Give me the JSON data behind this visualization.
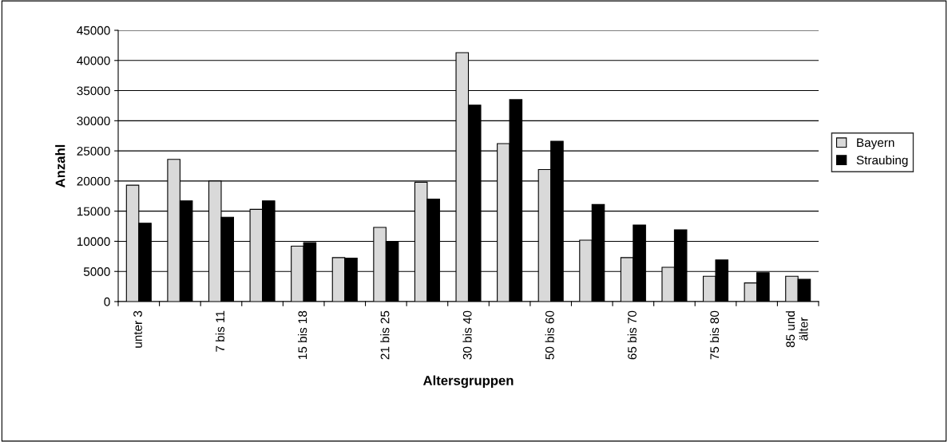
{
  "chart_data": {
    "type": "bar",
    "xlabel": "Altersgruppen",
    "ylabel": "Anzahl",
    "categories": [
      "unter 3",
      null,
      "7 bis 11",
      null,
      "15 bis 18",
      null,
      "21 bis 25",
      null,
      "30 bis 40",
      null,
      "50 bis 60",
      null,
      "65 bis 70",
      null,
      "75 bis 80",
      null,
      "85 und\nälter"
    ],
    "series": [
      {
        "name": "Bayern",
        "color": "#d9d9d9",
        "values": [
          19300,
          23600,
          20000,
          15300,
          9200,
          7300,
          12300,
          19800,
          41300,
          26200,
          21900,
          10200,
          7300,
          5700,
          4200,
          3100,
          4200
        ]
      },
      {
        "name": "Straubing",
        "color": "#000000",
        "values": [
          13000,
          16700,
          14000,
          16700,
          9800,
          7200,
          10000,
          17000,
          32600,
          33500,
          26600,
          16100,
          12700,
          11900,
          6900,
          4800,
          3700
        ]
      }
    ],
    "ylim": [
      0,
      45000
    ],
    "yticks": [
      0,
      5000,
      10000,
      15000,
      20000,
      25000,
      30000,
      35000,
      40000,
      45000
    ],
    "grid": "y",
    "legend": "right"
  }
}
